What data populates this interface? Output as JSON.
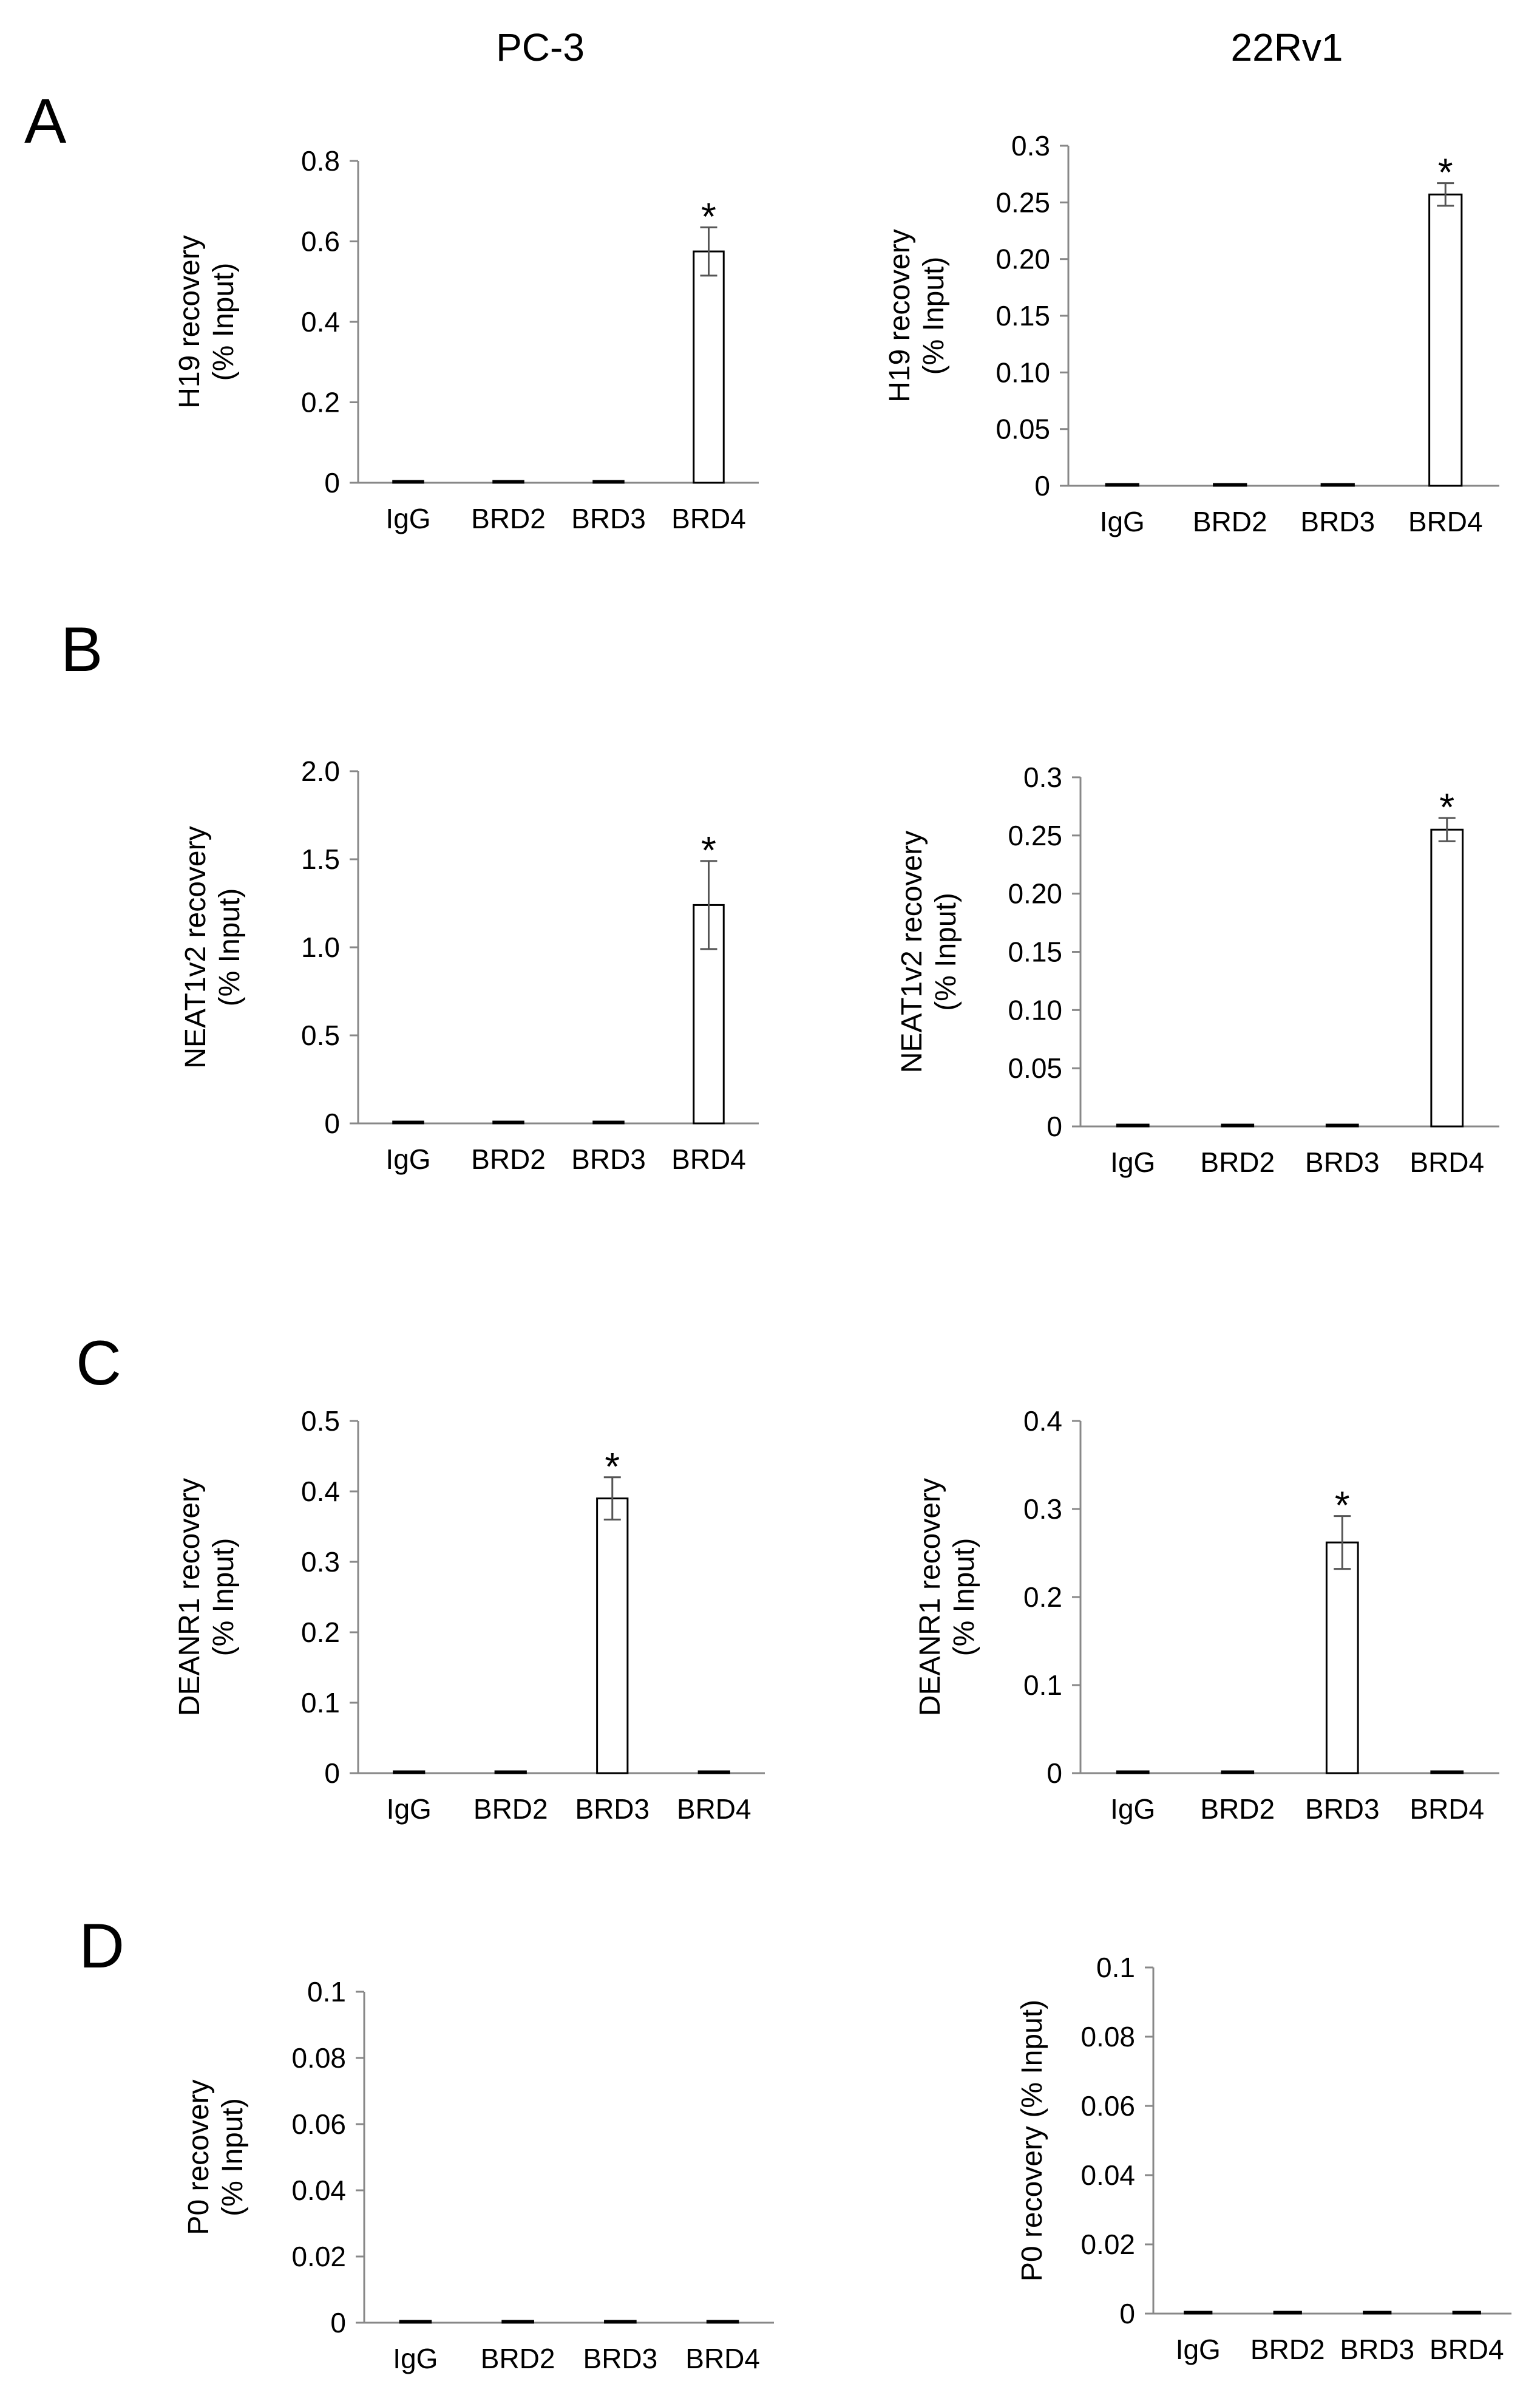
{
  "column_titles": [
    "PC-3",
    "22Rv1"
  ],
  "panel_labels": [
    "A",
    "B",
    "C",
    "D"
  ],
  "chart_data": [
    {
      "id": "A-PC3",
      "type": "bar",
      "panel": "A",
      "cell_line": "PC-3",
      "categories": [
        "IgG",
        "BRD2",
        "BRD3",
        "BRD4"
      ],
      "values": [
        0.002,
        0.002,
        0.002,
        0.575
      ],
      "errors": [
        0,
        0,
        0,
        0.06
      ],
      "significant": [
        false,
        false,
        false,
        true
      ],
      "ylim": [
        0,
        0.8
      ],
      "yticks": [
        "0",
        "0.2",
        "0.4",
        "0.6",
        "0.8"
      ],
      "ylabel_lines": [
        "H19 recovery",
        "(% Input)"
      ]
    },
    {
      "id": "A-22Rv1",
      "type": "bar",
      "panel": "A",
      "cell_line": "22Rv1",
      "categories": [
        "IgG",
        "BRD2",
        "BRD3",
        "BRD4"
      ],
      "values": [
        0.0008,
        0.0008,
        0.0008,
        0.257
      ],
      "errors": [
        0,
        0,
        0,
        0.01
      ],
      "significant": [
        false,
        false,
        false,
        true
      ],
      "ylim": [
        0,
        0.3
      ],
      "yticks": [
        "0",
        "0.05",
        "0.10",
        "0.15",
        "0.20",
        "0.25",
        "0.3"
      ],
      "ylabel_lines": [
        "H19 recovery",
        "(% Input)"
      ]
    },
    {
      "id": "B-PC3",
      "type": "bar",
      "panel": "B",
      "cell_line": "PC-3",
      "categories": [
        "IgG",
        "BRD2",
        "BRD3",
        "BRD4"
      ],
      "values": [
        0.003,
        0.004,
        0.004,
        1.24
      ],
      "errors": [
        0,
        0,
        0,
        0.25
      ],
      "significant": [
        false,
        false,
        false,
        true
      ],
      "ylim": [
        0,
        2.0
      ],
      "yticks": [
        "0",
        "0.5",
        "1.0",
        "1.5",
        "2.0"
      ],
      "ylabel_lines": [
        "NEAT1v2 recovery",
        "(% Input)"
      ]
    },
    {
      "id": "B-22Rv1",
      "type": "bar",
      "panel": "B",
      "cell_line": "22Rv1",
      "categories": [
        "IgG",
        "BRD2",
        "BRD3",
        "BRD4"
      ],
      "values": [
        0.0008,
        0.0008,
        0.0008,
        0.255
      ],
      "errors": [
        0,
        0,
        0,
        0.01
      ],
      "significant": [
        false,
        false,
        false,
        true
      ],
      "ylim": [
        0,
        0.3
      ],
      "yticks": [
        "0",
        "0.05",
        "0.10",
        "0.15",
        "0.20",
        "0.25",
        "0.3"
      ],
      "ylabel_lines": [
        "NEAT1v2 recovery",
        "(% Input)"
      ]
    },
    {
      "id": "C-PC3",
      "type": "bar",
      "panel": "C",
      "cell_line": "PC-3",
      "categories": [
        "IgG",
        "BRD2",
        "BRD3",
        "BRD4"
      ],
      "values": [
        0.002,
        0.002,
        0.39,
        0.002
      ],
      "errors": [
        0,
        0,
        0.03,
        0
      ],
      "significant": [
        false,
        false,
        true,
        false
      ],
      "ylim": [
        0,
        0.5
      ],
      "yticks": [
        "0",
        "0.1",
        "0.2",
        "0.3",
        "0.4",
        "0.5"
      ],
      "ylabel_lines": [
        "DEANR1 recovery",
        "(% Input)"
      ]
    },
    {
      "id": "C-22Rv1",
      "type": "bar",
      "panel": "C",
      "cell_line": "22Rv1",
      "categories": [
        "IgG",
        "BRD2",
        "BRD3",
        "BRD4"
      ],
      "values": [
        0.0015,
        0.0015,
        0.262,
        0.0015
      ],
      "errors": [
        0,
        0,
        0.03,
        0
      ],
      "significant": [
        false,
        false,
        true,
        false
      ],
      "ylim": [
        0,
        0.4
      ],
      "yticks": [
        "0",
        "0.1",
        "0.2",
        "0.3",
        "0.4"
      ],
      "ylabel_lines": [
        "DEANR1 recovery",
        "(% Input)"
      ]
    },
    {
      "id": "D-PC3",
      "type": "bar",
      "panel": "D",
      "cell_line": "PC-3",
      "categories": [
        "IgG",
        "BRD2",
        "BRD3",
        "BRD4"
      ],
      "values": [
        0.0003,
        0.0002,
        0.0003,
        0.0003
      ],
      "errors": [
        0,
        0,
        0,
        0
      ],
      "significant": [
        false,
        false,
        false,
        false
      ],
      "ylim": [
        0,
        0.1
      ],
      "yticks": [
        "0",
        "0.02",
        "0.04",
        "0.06",
        "0.08",
        "0.1"
      ],
      "ylabel_lines": [
        "P0 recovery",
        "(% Input)"
      ]
    },
    {
      "id": "D-22Rv1",
      "type": "bar",
      "panel": "D",
      "cell_line": "22Rv1",
      "categories": [
        "IgG",
        "BRD2",
        "BRD3",
        "BRD4"
      ],
      "values": [
        0.0003,
        0.0003,
        0.0003,
        0.0003
      ],
      "errors": [
        0,
        0,
        0,
        0
      ],
      "significant": [
        false,
        false,
        false,
        false
      ],
      "ylim": [
        0,
        0.1
      ],
      "yticks": [
        "0",
        "0.02",
        "0.04",
        "0.06",
        "0.08",
        "0.1"
      ],
      "ylabel_lines": [
        "P0 recovery (% Input)"
      ]
    }
  ]
}
